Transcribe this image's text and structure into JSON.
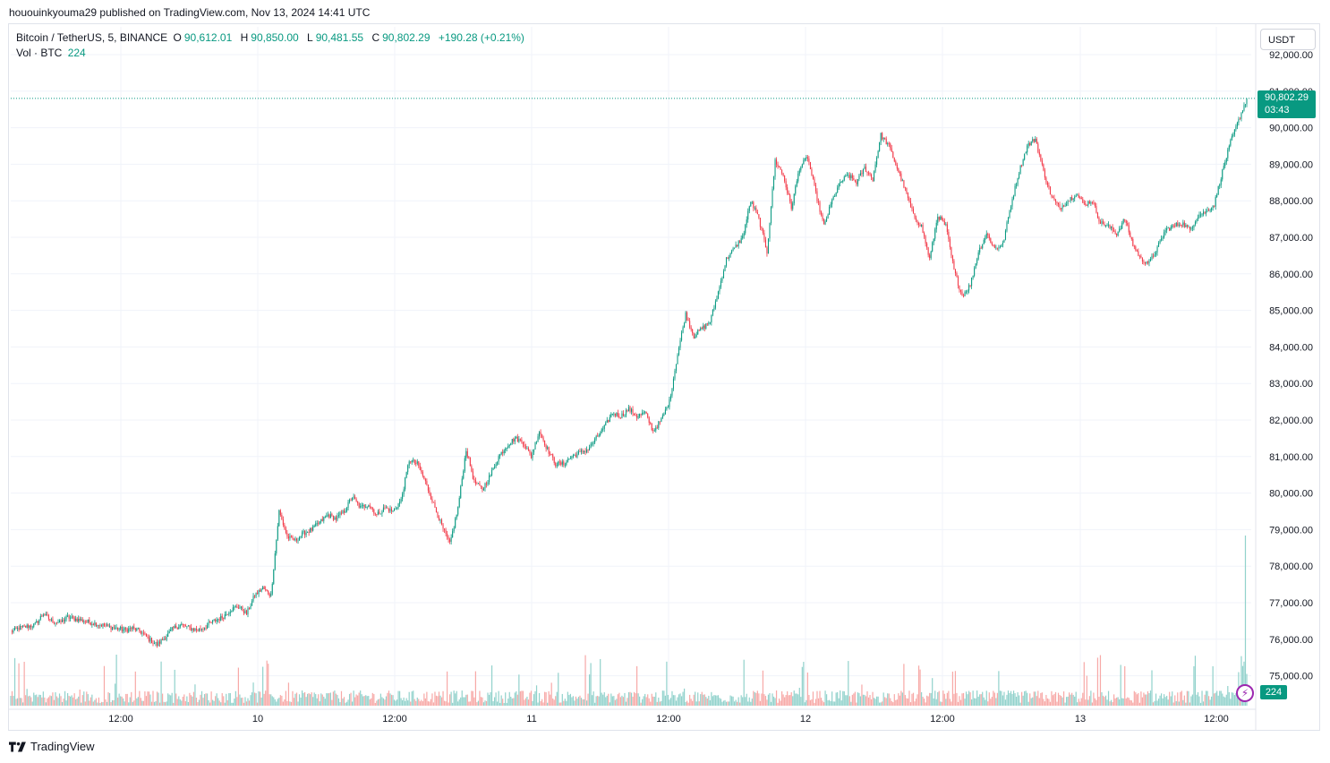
{
  "published_line": "hououinkyouma29 published on TradingView.com, Nov 13, 2024 14:41 UTC",
  "legend": {
    "symbol": "Bitcoin / TetherUS, 5, BINANCE",
    "o_label": "O",
    "o_value": "90,612.01",
    "h_label": "H",
    "h_value": "90,850.00",
    "l_label": "L",
    "l_value": "90,481.55",
    "c_label": "C",
    "c_value": "90,802.29",
    "change": "+190.28 (+0.21%)",
    "vol_label": "Vol · BTC",
    "vol_value": "224"
  },
  "currency_button": "USDT",
  "last_price": {
    "price": "90,802.29",
    "countdown": "03:43"
  },
  "volume_tag": "224",
  "brand": "TradingView",
  "icons": {
    "brand_logo": "tradingview-logo-icon",
    "bolt": "lightning-icon"
  },
  "colors": {
    "up": "#089981",
    "down": "#f23645",
    "vol_up": "#92d2cc",
    "vol_down": "#f7a9a7",
    "last_line": "#089981"
  },
  "chart_data": {
    "type": "candlestick",
    "timeframe": "5",
    "y_axis_labels": [
      "75,000.00",
      "76,000.00",
      "77,000.00",
      "78,000.00",
      "79,000.00",
      "80,000.00",
      "81,000.00",
      "82,000.00",
      "83,000.00",
      "84,000.00",
      "85,000.00",
      "86,000.00",
      "87,000.00",
      "88,000.00",
      "89,000.00",
      "90,000.00",
      "91,000.00",
      "92,000.00"
    ],
    "ylim": [
      74500,
      92000
    ],
    "x_axis_labels": [
      "12:00",
      "10",
      "12:00",
      "11",
      "12:00",
      "12",
      "12:00",
      "13",
      "12:00"
    ],
    "close_path_hourly": [
      76200,
      76300,
      76350,
      76400,
      76700,
      76500,
      76450,
      76600,
      76550,
      76500,
      76450,
      76400,
      76350,
      76300,
      76250,
      76300,
      76200,
      76000,
      75850,
      76050,
      76300,
      76400,
      76300,
      76250,
      76350,
      76500,
      76600,
      76800,
      76900,
      76700,
      77200,
      77400,
      77200,
      79500,
      78800,
      78700,
      78900,
      79000,
      79200,
      79400,
      79300,
      79500,
      79900,
      79600,
      79700,
      79400,
      79600,
      79500,
      79800,
      80900,
      80800,
      80300,
      79700,
      79100,
      78600,
      79600,
      81200,
      80300,
      80100,
      80500,
      81000,
      81300,
      81500,
      81400,
      81000,
      81700,
      81200,
      80800,
      80800,
      81000,
      81100,
      81200,
      81500,
      81800,
      82200,
      82100,
      82300,
      82100,
      82200,
      81700,
      82000,
      82500,
      83800,
      84900,
      84300,
      84500,
      84700,
      85500,
      86400,
      86700,
      87000,
      88000,
      87500,
      86600,
      89100,
      88700,
      87800,
      88900,
      89200,
      88200,
      87300,
      88000,
      88500,
      88700,
      88500,
      88900,
      88600,
      89800,
      89500,
      88900,
      88300,
      87600,
      87300,
      86400,
      87600,
      87300,
      86100,
      85400,
      85700,
      86600,
      87100,
      86700,
      86800,
      87900,
      88800,
      89500,
      89700,
      88800,
      88100,
      87800,
      88000,
      88200,
      87900,
      88000,
      87400,
      87300,
      87100,
      87500,
      86800,
      86400,
      86300,
      86700,
      87200,
      87300,
      87400,
      87200,
      87600,
      87700,
      87900,
      88800,
      89600,
      90200,
      90802
    ],
    "last_price": 90802.29,
    "volume_last": 224
  }
}
